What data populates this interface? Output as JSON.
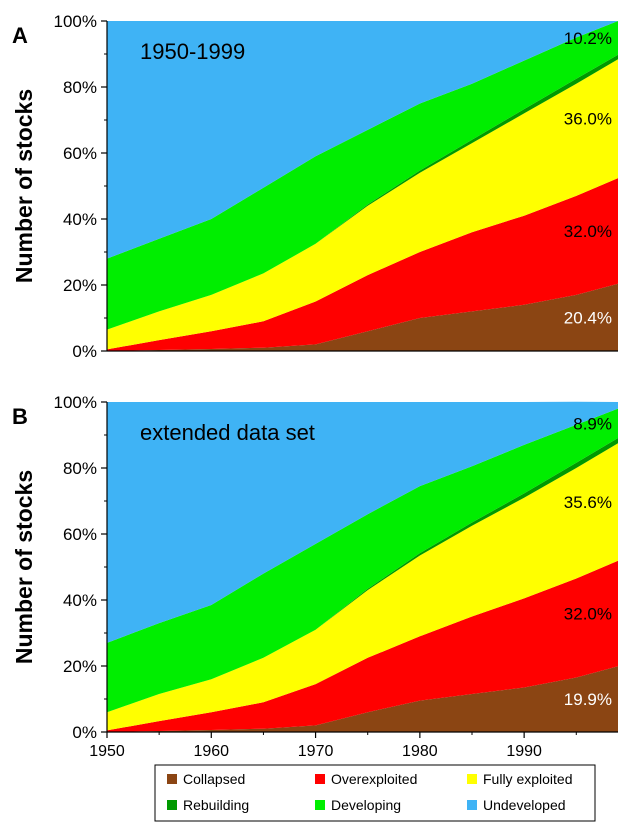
{
  "figure": {
    "x_ticks": [
      "1950",
      "1960",
      "1970",
      "1980",
      "1990"
    ],
    "y_ticks": [
      "0%",
      "20%",
      "40%",
      "60%",
      "80%",
      "100%"
    ],
    "ylabel": "Number of stocks"
  },
  "legend": {
    "items": [
      {
        "label": "Collapsed",
        "color": "#8b4513"
      },
      {
        "label": "Overexploited",
        "color": "#ff0000"
      },
      {
        "label": "Fully exploited",
        "color": "#ffff00"
      },
      {
        "label": "Rebuilding",
        "color": "#009900"
      },
      {
        "label": "Developing",
        "color": "#00ee00"
      },
      {
        "label": "Undeveloped",
        "color": "#3fb3f5"
      }
    ]
  },
  "chart_data": [
    {
      "type": "area",
      "stacked": true,
      "panel_letter": "A",
      "annotation": "1950-1999",
      "ylabel": "Number of stocks",
      "ylim": [
        0,
        100
      ],
      "xlim": [
        1950,
        1999
      ],
      "x": [
        1950,
        1955,
        1960,
        1965,
        1970,
        1975,
        1980,
        1985,
        1990,
        1995,
        1999
      ],
      "series": [
        {
          "name": "Collapsed",
          "color": "#8b4513",
          "values": [
            0,
            0.3,
            0.6,
            1,
            2,
            6,
            10,
            12,
            14,
            17,
            20.4
          ]
        },
        {
          "name": "Overexploited",
          "color": "#ff0000",
          "values": [
            0.5,
            3,
            5.4,
            8,
            13,
            17,
            20,
            24,
            27,
            30,
            32
          ]
        },
        {
          "name": "Fully exploited",
          "color": "#ffff00",
          "values": [
            6,
            8.7,
            11,
            14.5,
            17.5,
            21,
            24,
            27,
            31,
            34,
            36
          ]
        },
        {
          "name": "Rebuilding",
          "color": "#009900",
          "values": [
            0,
            0,
            0,
            0,
            0,
            0.4,
            0.7,
            1,
            1.3,
            1.5,
            1.4
          ]
        },
        {
          "name": "Developing",
          "color": "#00ee00",
          "values": [
            21.5,
            22,
            23,
            26,
            26.5,
            22.6,
            20.3,
            17,
            14.7,
            12.5,
            10.2
          ]
        },
        {
          "name": "Undeveloped",
          "color": "#3fb3f5",
          "values": [
            72,
            66,
            60,
            50.5,
            41,
            33,
            25,
            19,
            12,
            5,
            0
          ]
        }
      ],
      "labels": [
        {
          "series": "Collapsed",
          "text": "20.4%"
        },
        {
          "series": "Overexploited",
          "text": "32.0%"
        },
        {
          "series": "Fully exploited",
          "text": "36.0%"
        },
        {
          "series": "Developing",
          "text": "10.2%"
        }
      ]
    },
    {
      "type": "area",
      "stacked": true,
      "panel_letter": "B",
      "annotation": "extended data set",
      "ylabel": "Number of stocks",
      "ylim": [
        0,
        100
      ],
      "xlim": [
        1950,
        1999
      ],
      "x": [
        1950,
        1955,
        1960,
        1965,
        1970,
        1975,
        1980,
        1985,
        1990,
        1995,
        1999
      ],
      "series": [
        {
          "name": "Collapsed",
          "color": "#8b4513",
          "values": [
            0,
            0.3,
            0.6,
            1,
            2,
            6,
            9.5,
            11.5,
            13.5,
            16.5,
            19.9
          ]
        },
        {
          "name": "Overexploited",
          "color": "#ff0000",
          "values": [
            0.5,
            3,
            5.4,
            8,
            12.5,
            16.5,
            19.5,
            23.5,
            27,
            30,
            32
          ]
        },
        {
          "name": "Fully exploited",
          "color": "#ffff00",
          "values": [
            5.5,
            8.2,
            10,
            13.5,
            16.5,
            20.5,
            24.5,
            27.5,
            30.5,
            33.5,
            35.6
          ]
        },
        {
          "name": "Rebuilding",
          "color": "#009900",
          "values": [
            0,
            0,
            0,
            0,
            0,
            0.4,
            0.7,
            1,
            1.3,
            1.6,
            1.6
          ]
        },
        {
          "name": "Developing",
          "color": "#00ee00",
          "values": [
            21,
            21.5,
            22.5,
            25.5,
            26,
            22.6,
            20.3,
            17,
            14.7,
            11.5,
            8.9
          ]
        },
        {
          "name": "Undeveloped",
          "color": "#3fb3f5",
          "values": [
            73,
            67,
            61.5,
            52,
            43,
            34,
            25.5,
            19.5,
            13,
            7,
            2
          ]
        }
      ],
      "labels": [
        {
          "series": "Collapsed",
          "text": "19.9%"
        },
        {
          "series": "Overexploited",
          "text": "32.0%"
        },
        {
          "series": "Fully exploited",
          "text": "35.6%"
        },
        {
          "series": "Developing",
          "text": "8.9%"
        }
      ]
    }
  ]
}
